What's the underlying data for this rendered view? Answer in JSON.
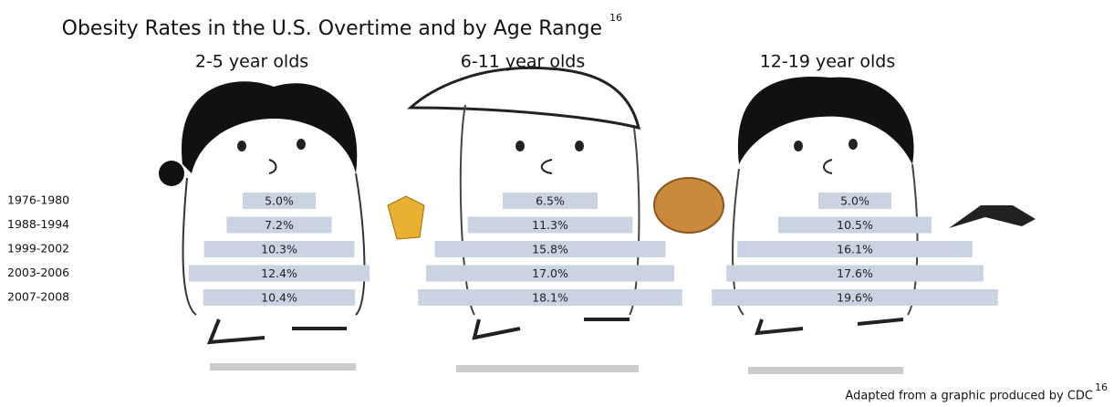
{
  "title": "Obesity Rates in the U.S. Overtime and by Age Range",
  "title_note": "16",
  "source": "Adapted from a graphic produced by CDC",
  "source_note": "16",
  "chart_data": [
    {
      "type": "bar",
      "title": "2-5 year olds",
      "color": "#c9d3e1",
      "categories": [
        "1976-1980",
        "1988-1994",
        "1999-2002",
        "2003-2006",
        "2007-2008"
      ],
      "values": [
        5.0,
        7.2,
        10.3,
        12.4,
        10.4
      ],
      "value_labels": [
        "5.0%",
        "7.2%",
        "10.3%",
        "12.4%",
        "10.4%"
      ]
    },
    {
      "type": "bar",
      "title": "6-11 year olds",
      "color": "#c9d3e1",
      "values": [
        6.5,
        11.3,
        15.8,
        17.0,
        18.1
      ],
      "value_labels": [
        "6.5%",
        "11.3%",
        "15.8%",
        "17.0%",
        "18.1%"
      ]
    },
    {
      "type": "bar",
      "title": "12-19 year olds",
      "color": "#c9d3e1",
      "values": [
        5.0,
        10.5,
        16.1,
        17.6,
        19.6
      ],
      "value_labels": [
        "5.0%",
        "10.5%",
        "16.1%",
        "17.6%",
        "19.6%"
      ]
    }
  ]
}
